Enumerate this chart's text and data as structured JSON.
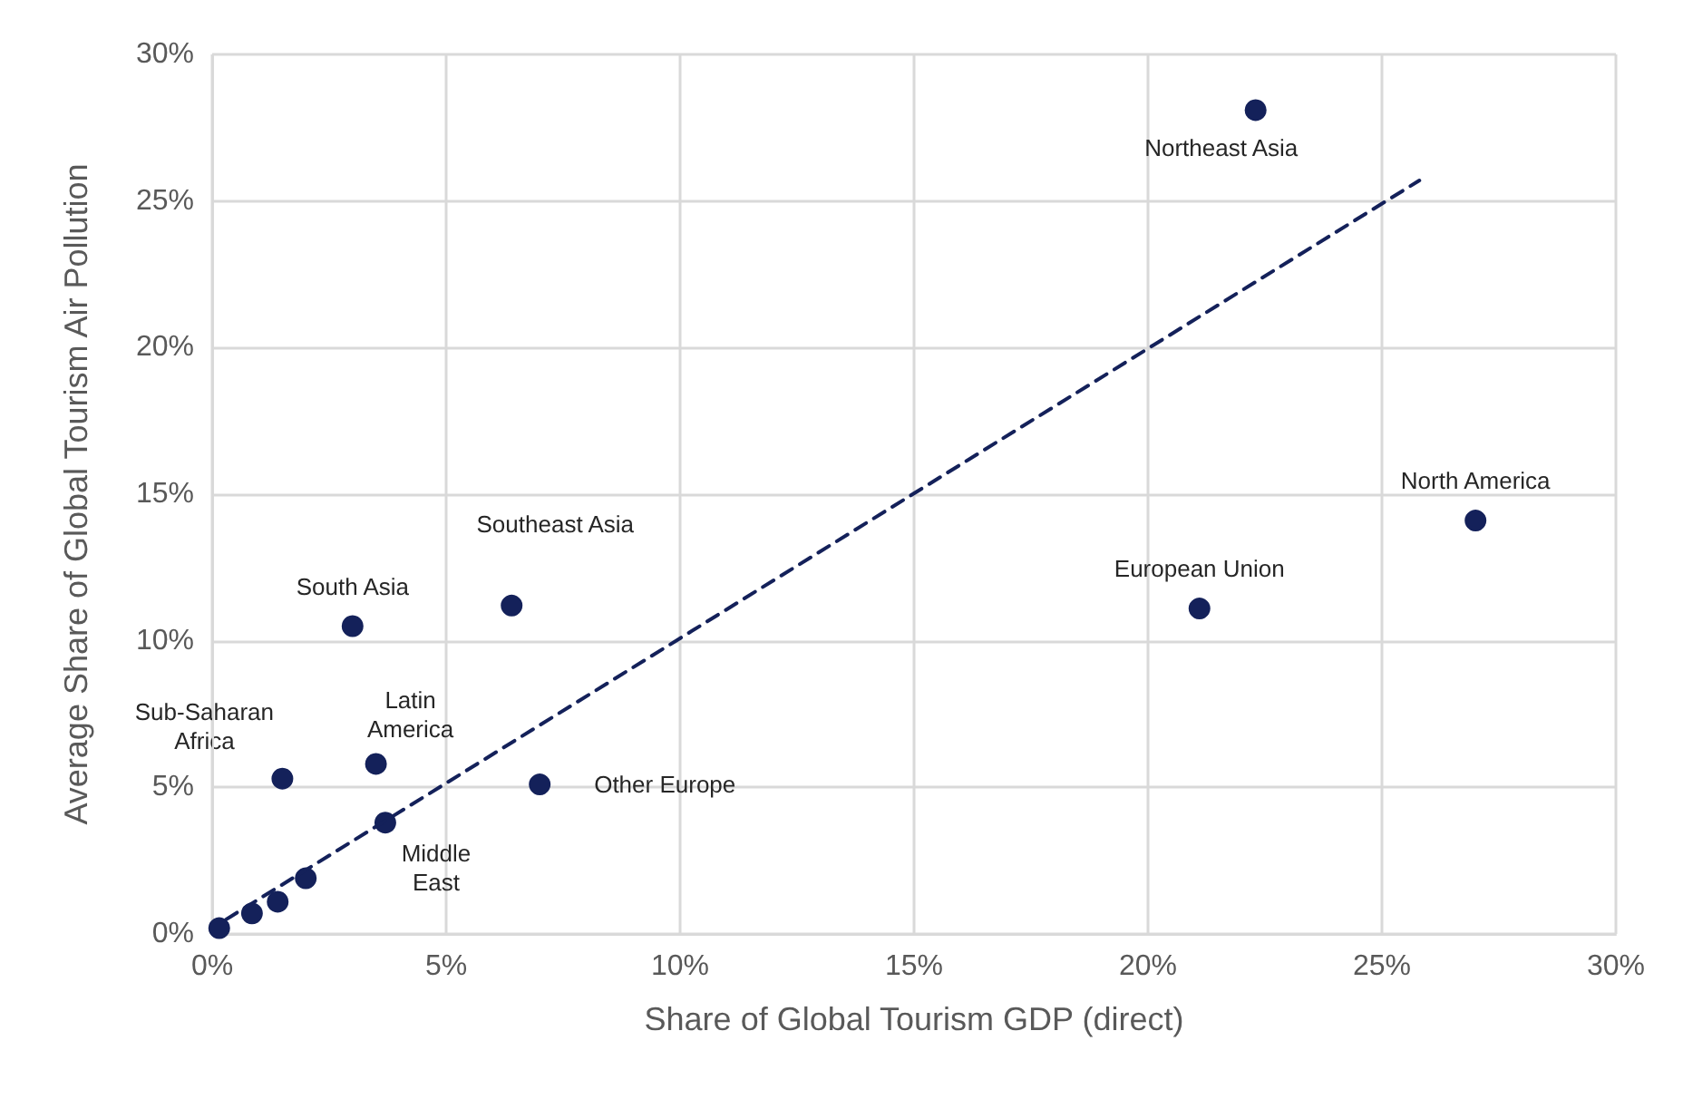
{
  "chart_data": {
    "type": "scatter",
    "xlabel": "Share of Global Tourism GDP (direct)",
    "ylabel": "Average Share of Global Tourism Air Pollution",
    "xlim": [
      0,
      30
    ],
    "ylim": [
      0,
      30
    ],
    "xticks": [
      {
        "value": 0,
        "label": "0%"
      },
      {
        "value": 5,
        "label": "5%"
      },
      {
        "value": 10,
        "label": "10%"
      },
      {
        "value": 15,
        "label": "15%"
      },
      {
        "value": 20,
        "label": "20%"
      },
      {
        "value": 25,
        "label": "25%"
      },
      {
        "value": 30,
        "label": "30%"
      }
    ],
    "yticks": [
      {
        "value": 0,
        "label": "0%"
      },
      {
        "value": 5,
        "label": "5%"
      },
      {
        "value": 10,
        "label": "10%"
      },
      {
        "value": 15,
        "label": "15%"
      },
      {
        "value": 20,
        "label": "20%"
      },
      {
        "value": 25,
        "label": "25%"
      },
      {
        "value": 30,
        "label": "30%"
      }
    ],
    "grid": true,
    "series": [
      {
        "color": "#14215a",
        "marker": "circle",
        "x": [
          0.15,
          0.85,
          1.4,
          2.0,
          1.5,
          3.0,
          3.5,
          3.7,
          6.4,
          7.0,
          21.1,
          22.3,
          27.0
        ],
        "values": [
          0.2,
          0.7,
          1.1,
          1.9,
          5.3,
          10.5,
          5.8,
          3.8,
          11.2,
          5.1,
          11.1,
          28.1,
          14.1
        ]
      },
      {
        "type": "line",
        "color": "#14215a",
        "marker": "none",
        "line_style": "dashed",
        "x": [
          0.3,
          25.8
        ],
        "values": [
          0.5,
          25.7
        ]
      }
    ],
    "annotations": [
      {
        "text": "Northeast Asia",
        "x": 22.3,
        "y": 28.1
      },
      {
        "text": "North America",
        "x": 27.0,
        "y": 14.1
      },
      {
        "text": "European Union",
        "x": 21.1,
        "y": 11.1
      },
      {
        "text": "Southeast Asia",
        "x": 6.4,
        "y": 11.2
      },
      {
        "text": "South Asia",
        "x": 3.0,
        "y": 10.5
      },
      {
        "text": "Sub-Saharan\nAfrica",
        "x": 1.5,
        "y": 5.3
      },
      {
        "text": "Latin\nAmerica",
        "x": 3.5,
        "y": 5.8
      },
      {
        "text": "Middle\nEast",
        "x": 3.7,
        "y": 3.8
      },
      {
        "text": "Other Europe",
        "x": 7.0,
        "y": 5.1
      }
    ]
  }
}
